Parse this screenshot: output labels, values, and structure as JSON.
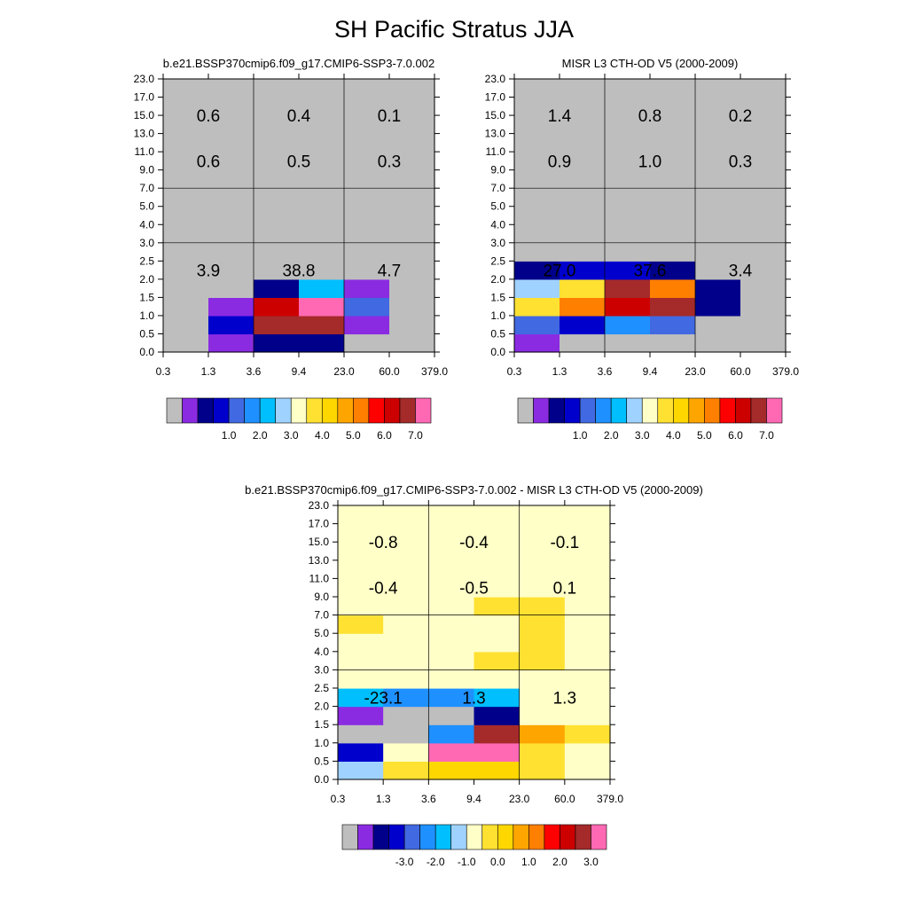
{
  "main_title": "SH Pacific Stratus JJA",
  "x_ticks": [
    "0.3",
    "1.3",
    "3.6",
    "9.4",
    "23.0",
    "60.0",
    "379.0"
  ],
  "y_ticks": [
    "0.0",
    "0.5",
    "1.0",
    "1.5",
    "2.0",
    "2.5",
    "3.0",
    "4.0",
    "5.0",
    "7.0",
    "9.0",
    "11.0",
    "13.0",
    "15.0",
    "17.0",
    "23.0"
  ],
  "chart_data": [
    {
      "type": "heatmap",
      "title": "b.e21.BSSP370cmip6.f09_g17.CMIP6-SSP3-7.0.002",
      "x_edges": [
        "0.3",
        "1.3",
        "3.6",
        "9.4",
        "23.0",
        "60.0",
        "379.0"
      ],
      "y_edges": [
        "0.0",
        "0.5",
        "1.0",
        "1.5",
        "2.0",
        "2.5",
        "3.0",
        "4.0",
        "5.0",
        "7.0",
        "9.0",
        "11.0",
        "13.0",
        "15.0",
        "17.0",
        "23.0"
      ],
      "cell_levels": [
        [
          0,
          1,
          2,
          2,
          0,
          0
        ],
        [
          0,
          3,
          15,
          15,
          1,
          0
        ],
        [
          0,
          1,
          14,
          16,
          4,
          0
        ],
        [
          0,
          0,
          2,
          6,
          1,
          0
        ],
        [
          0,
          0,
          0,
          0,
          0,
          0
        ],
        [
          0,
          0,
          0,
          0,
          0,
          0
        ],
        [
          0,
          0,
          0,
          0,
          0,
          0
        ],
        [
          0,
          0,
          0,
          0,
          0,
          0
        ],
        [
          0,
          0,
          0,
          0,
          0,
          0
        ],
        [
          0,
          0,
          0,
          0,
          0,
          0
        ],
        [
          0,
          0,
          0,
          0,
          0,
          0
        ],
        [
          0,
          0,
          0,
          0,
          0,
          0
        ],
        [
          0,
          0,
          0,
          0,
          0,
          0
        ],
        [
          0,
          0,
          0,
          0,
          0,
          0
        ],
        [
          0,
          0,
          0,
          0,
          0,
          0
        ]
      ],
      "box_values": [
        [
          "3.9",
          "38.8",
          "4.7"
        ],
        [
          "0.6",
          "0.5",
          "0.3"
        ],
        [
          "0.6",
          "0.4",
          "0.1"
        ]
      ],
      "colorbar_labels": [
        "1.0",
        "2.0",
        "3.0",
        "4.0",
        "5.0",
        "6.0",
        "7.0"
      ]
    },
    {
      "type": "heatmap",
      "title": "MISR L3 CTH-OD V5 (2000-2009)",
      "x_edges": [
        "0.3",
        "1.3",
        "3.6",
        "9.4",
        "23.0",
        "60.0",
        "379.0"
      ],
      "y_edges": [
        "0.0",
        "0.5",
        "1.0",
        "1.5",
        "2.0",
        "2.5",
        "3.0",
        "4.0",
        "5.0",
        "7.0",
        "9.0",
        "11.0",
        "13.0",
        "15.0",
        "17.0",
        "23.0"
      ],
      "cell_levels": [
        [
          1,
          0,
          0,
          0,
          0,
          0
        ],
        [
          4,
          3,
          5,
          4,
          0,
          0
        ],
        [
          9,
          12,
          14,
          15,
          2,
          0
        ],
        [
          7,
          9,
          15,
          12,
          2,
          0
        ],
        [
          2,
          3,
          3,
          2,
          0,
          0
        ],
        [
          0,
          0,
          0,
          0,
          0,
          0
        ],
        [
          0,
          0,
          0,
          0,
          0,
          0
        ],
        [
          0,
          0,
          0,
          0,
          0,
          0
        ],
        [
          0,
          0,
          0,
          0,
          0,
          0
        ],
        [
          0,
          0,
          0,
          0,
          0,
          0
        ],
        [
          0,
          0,
          0,
          0,
          0,
          0
        ],
        [
          0,
          0,
          0,
          0,
          0,
          0
        ],
        [
          0,
          0,
          0,
          0,
          0,
          0
        ],
        [
          0,
          0,
          0,
          0,
          0,
          0
        ],
        [
          0,
          0,
          0,
          0,
          0,
          0
        ]
      ],
      "box_values": [
        [
          "27.0",
          "37.6",
          "3.4"
        ],
        [
          "0.9",
          "1.0",
          "0.3"
        ],
        [
          "1.4",
          "0.8",
          "0.2"
        ]
      ],
      "colorbar_labels": [
        "1.0",
        "2.0",
        "3.0",
        "4.0",
        "5.0",
        "6.0",
        "7.0"
      ]
    },
    {
      "type": "heatmap",
      "title": "b.e21.BSSP370cmip6.f09_g17.CMIP6-SSP3-7.0.002 - MISR L3 CTH-OD V5 (2000-2009)",
      "x_edges": [
        "0.3",
        "1.3",
        "3.6",
        "9.4",
        "23.0",
        "60.0",
        "379.0"
      ],
      "y_edges": [
        "0.0",
        "0.5",
        "1.0",
        "1.5",
        "2.0",
        "2.5",
        "3.0",
        "4.0",
        "5.0",
        "7.0",
        "9.0",
        "11.0",
        "13.0",
        "15.0",
        "17.0",
        "23.0"
      ],
      "cell_levels": [
        [
          7,
          9,
          10,
          10,
          9,
          8
        ],
        [
          3,
          8,
          16,
          16,
          9,
          8
        ],
        [
          0,
          0,
          5,
          15,
          11,
          9
        ],
        [
          1,
          0,
          0,
          2,
          8,
          8
        ],
        [
          6,
          5,
          5,
          6,
          8,
          8
        ],
        [
          8,
          8,
          8,
          8,
          8,
          8
        ],
        [
          8,
          8,
          8,
          9,
          9,
          8
        ],
        [
          8,
          8,
          8,
          8,
          9,
          8
        ],
        [
          9,
          8,
          8,
          8,
          9,
          8
        ],
        [
          8,
          8,
          8,
          9,
          9,
          8
        ],
        [
          8,
          8,
          8,
          8,
          8,
          8
        ],
        [
          8,
          8,
          8,
          8,
          8,
          8
        ],
        [
          8,
          8,
          8,
          8,
          8,
          8
        ],
        [
          8,
          8,
          8,
          8,
          8,
          8
        ],
        [
          8,
          8,
          8,
          8,
          8,
          8
        ]
      ],
      "box_values": [
        [
          "-23.1",
          "1.3",
          "1.3"
        ],
        [
          "-0.4",
          "-0.5",
          "0.1"
        ],
        [
          "-0.8",
          "-0.4",
          "-0.1"
        ]
      ],
      "colorbar_labels": [
        "-3.0",
        "-2.0",
        "-1.0",
        "0.0",
        "1.0",
        "2.0",
        "3.0"
      ]
    }
  ],
  "colormap": [
    "#bebebe",
    "#8a2be2",
    "#00008b",
    "#0000cd",
    "#4169e1",
    "#1e90ff",
    "#00bfff",
    "#a0d2ff",
    "#ffffc8",
    "#ffe132",
    "#ffd700",
    "#ffa500",
    "#ff7f00",
    "#ff0000",
    "#cd0000",
    "#a52a2a",
    "#ff69b4"
  ]
}
